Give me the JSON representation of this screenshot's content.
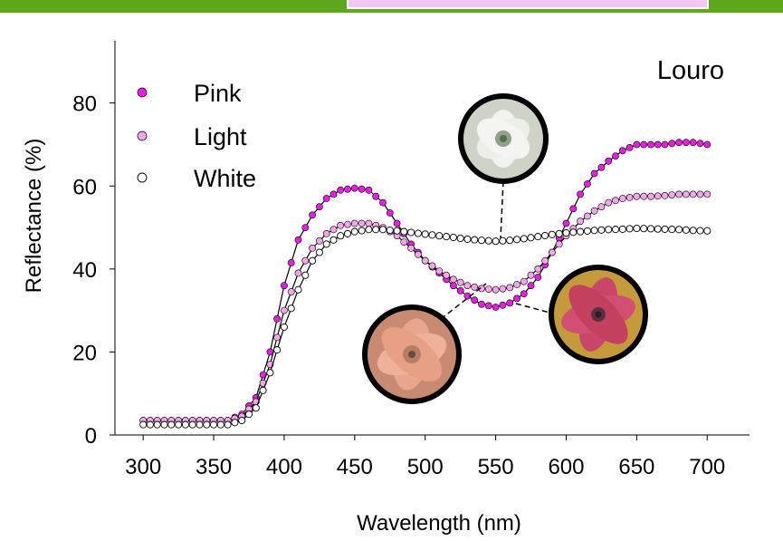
{
  "colors": {
    "header_bar": "#5fa81e",
    "header_tab": "#f3c8f0",
    "pink": "#e81ee0",
    "light": "#f5a6ec",
    "white": "#ffffff",
    "line": "#000000"
  },
  "chart_data": {
    "type": "scatter",
    "title": "Louro",
    "xlabel": "Wavelength (nm)",
    "ylabel": "Reflectance (%)",
    "xlim": [
      280,
      730
    ],
    "ylim": [
      0,
      95
    ],
    "xticks": [
      300,
      350,
      400,
      450,
      500,
      550,
      600,
      650,
      700
    ],
    "yticks": [
      0,
      20,
      40,
      60,
      80
    ],
    "legend_position": "top-left",
    "grid": false,
    "series": [
      {
        "name": "Pink",
        "color": "#e81ee0",
        "marker": "filled-circle",
        "knots": [
          [
            300,
            3.5
          ],
          [
            360,
            3.5
          ],
          [
            370,
            5
          ],
          [
            380,
            9
          ],
          [
            390,
            20
          ],
          [
            400,
            36
          ],
          [
            410,
            47
          ],
          [
            420,
            53
          ],
          [
            430,
            57
          ],
          [
            440,
            59
          ],
          [
            450,
            59.5
          ],
          [
            460,
            59
          ],
          [
            470,
            56
          ],
          [
            480,
            51
          ],
          [
            490,
            46
          ],
          [
            500,
            42
          ],
          [
            510,
            39
          ],
          [
            520,
            36
          ],
          [
            530,
            33.5
          ],
          [
            540,
            31.5
          ],
          [
            550,
            30.8
          ],
          [
            560,
            31.8
          ],
          [
            570,
            34
          ],
          [
            580,
            38
          ],
          [
            590,
            44
          ],
          [
            600,
            51
          ],
          [
            610,
            58
          ],
          [
            620,
            63
          ],
          [
            630,
            66
          ],
          [
            640,
            68.5
          ],
          [
            650,
            70
          ],
          [
            660,
            70
          ],
          [
            670,
            70
          ],
          [
            680,
            70.5
          ],
          [
            690,
            70.5
          ],
          [
            700,
            70
          ]
        ]
      },
      {
        "name": "Light",
        "color": "#f5a6ec",
        "marker": "filled-circle",
        "knots": [
          [
            300,
            3.5
          ],
          [
            360,
            3.5
          ],
          [
            370,
            4.5
          ],
          [
            380,
            8
          ],
          [
            390,
            17
          ],
          [
            400,
            30
          ],
          [
            410,
            39
          ],
          [
            420,
            45
          ],
          [
            430,
            48.5
          ],
          [
            440,
            50.5
          ],
          [
            450,
            51
          ],
          [
            460,
            51
          ],
          [
            470,
            50
          ],
          [
            480,
            48
          ],
          [
            490,
            45
          ],
          [
            500,
            42
          ],
          [
            510,
            39.5
          ],
          [
            520,
            37.5
          ],
          [
            530,
            36
          ],
          [
            540,
            35.3
          ],
          [
            550,
            35
          ],
          [
            560,
            35.5
          ],
          [
            570,
            37
          ],
          [
            580,
            40
          ],
          [
            590,
            44
          ],
          [
            600,
            48
          ],
          [
            610,
            51.5
          ],
          [
            620,
            54
          ],
          [
            630,
            56
          ],
          [
            640,
            57
          ],
          [
            650,
            57.5
          ],
          [
            660,
            57.5
          ],
          [
            670,
            57.7
          ],
          [
            680,
            58
          ],
          [
            690,
            58
          ],
          [
            700,
            58
          ]
        ]
      },
      {
        "name": "White",
        "color": "#ffffff",
        "marker": "open-circle",
        "knots": [
          [
            300,
            2.5
          ],
          [
            360,
            2.5
          ],
          [
            370,
            3.5
          ],
          [
            380,
            6.5
          ],
          [
            390,
            15
          ],
          [
            400,
            26
          ],
          [
            410,
            35
          ],
          [
            420,
            42
          ],
          [
            430,
            46
          ],
          [
            440,
            48
          ],
          [
            450,
            49
          ],
          [
            460,
            49.5
          ],
          [
            470,
            49.5
          ],
          [
            480,
            49.2
          ],
          [
            490,
            48.8
          ],
          [
            500,
            48.4
          ],
          [
            510,
            48
          ],
          [
            520,
            47.6
          ],
          [
            530,
            47.2
          ],
          [
            540,
            46.9
          ],
          [
            550,
            46.7
          ],
          [
            560,
            46.9
          ],
          [
            570,
            47.3
          ],
          [
            580,
            47.8
          ],
          [
            590,
            48.3
          ],
          [
            600,
            48.7
          ],
          [
            610,
            49
          ],
          [
            620,
            49.3
          ],
          [
            630,
            49.5
          ],
          [
            640,
            49.6
          ],
          [
            650,
            49.8
          ],
          [
            660,
            49.7
          ],
          [
            670,
            49.6
          ],
          [
            680,
            49.5
          ],
          [
            690,
            49.3
          ],
          [
            700,
            49.2
          ]
        ]
      }
    ]
  }
}
